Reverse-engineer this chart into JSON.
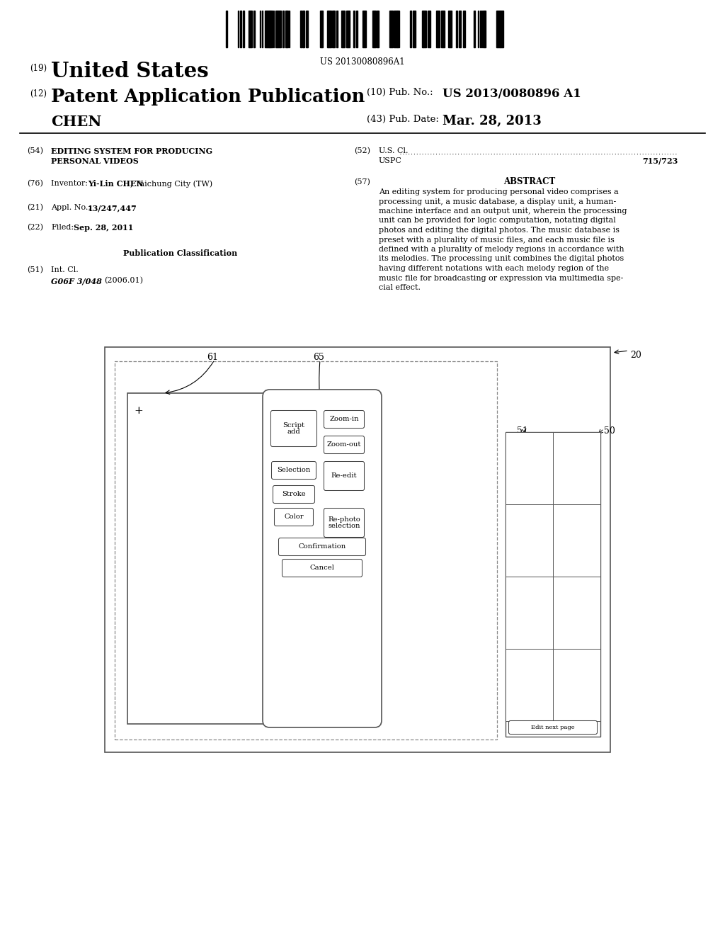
{
  "bg_color": "#ffffff",
  "barcode_text": "US 20130080896A1",
  "num19": "(19)",
  "title_text": "United States",
  "num12": "(12)",
  "subtitle_text": "Patent Application Publication",
  "pub_no_label": "(10) Pub. No.:",
  "pub_no_value": "US 2013/0080896 A1",
  "applicant": "CHEN",
  "pub_date_label": "(43) Pub. Date:",
  "pub_date_value": "Mar. 28, 2013",
  "field54_label": "(54)",
  "field54_text1": "EDITING SYSTEM FOR PRODUCING",
  "field54_text2": "PERSONAL VIDEOS",
  "field76_label": "(76)",
  "field76_inventor": "Inventor:",
  "field76_name": "Yi-Lin CHEN",
  "field76_loc": ", Taichung City (TW)",
  "field21_label": "(21)",
  "field21_pre": "Appl. No.:",
  "field21_val": "13/247,447",
  "field22_label": "(22)",
  "field22_pre": "Filed:",
  "field22_val": "Sep. 28, 2011",
  "pub_class_title": "Publication Classification",
  "field51_label": "(51)",
  "field51_t1": "Int. Cl.",
  "field51_t2": "G06F 3/048",
  "field51_t3": "(2006.01)",
  "field52_label": "(52)",
  "field52_t1": "U.S. Cl.",
  "field52_t2": "USPC",
  "field52_val": "715/723",
  "field57_label": "(57)",
  "abstract_title": "ABSTRACT",
  "abstract_text": "An editing system for producing personal video comprises a processing unit, a music database, a display unit, a human-machine interface and an output unit, wherein the processing unit can be provided for logic computation, notating digital photos and editing the digital photos. The music database is preset with a plurality of music files, and each music file is defined with a plurality of melody regions in accordance with its melodies. The processing unit combines the digital photos having different notations with each melody region of the music file for broadcasting or expression via multimedia special effect.",
  "lbl_20": "20",
  "lbl_61": "61",
  "lbl_65": "65",
  "lbl_50": "50",
  "lbl_51": "51",
  "btn_script_add": "Script\nadd",
  "btn_zoom_in": "Zoom-in",
  "btn_zoom_out": "Zoom-out",
  "btn_selection": "Selection",
  "btn_re_edit": "Re-edit",
  "btn_stroke": "Stroke",
  "btn_re_photo": "Re-photo\nselection",
  "btn_color": "Color",
  "btn_confirmation": "Confirmation",
  "btn_cancel": "Cancel",
  "btn_edit_next": "Edit next page"
}
